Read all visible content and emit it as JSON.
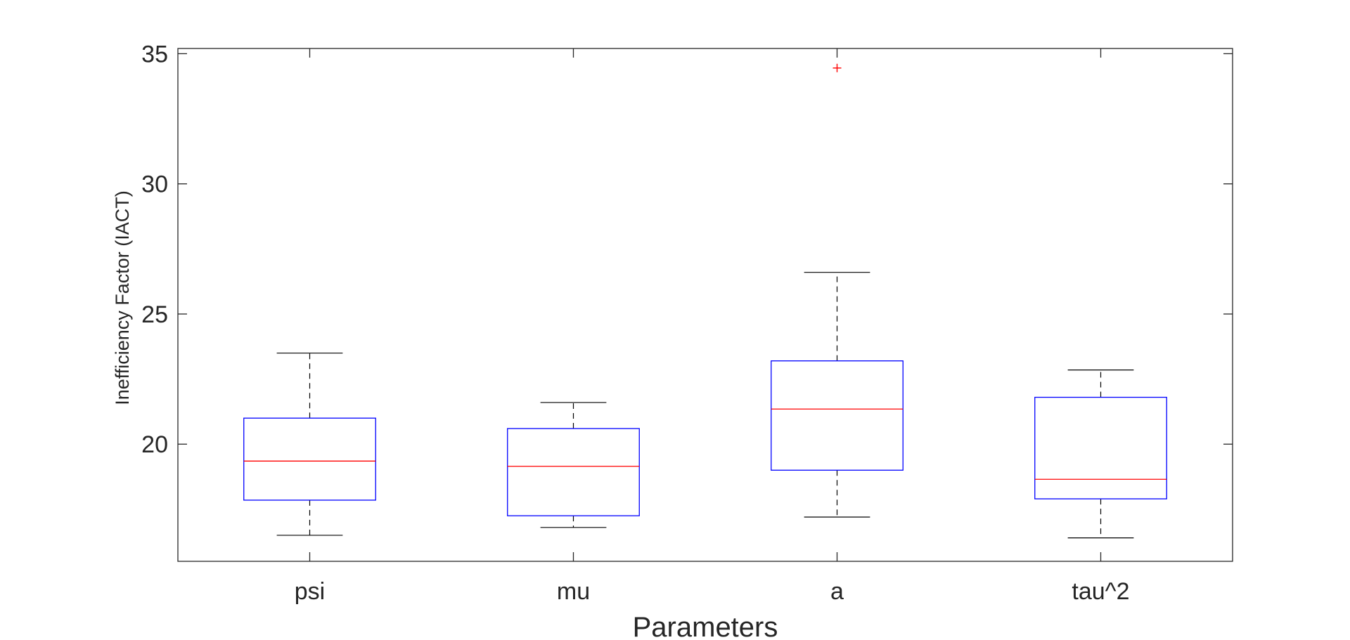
{
  "chart_data": {
    "type": "box",
    "title": "",
    "xlabel": "Parameters",
    "ylabel": "Inefficiency Factor (IACT)",
    "categories": [
      "psi",
      "mu",
      "a",
      "tau^2"
    ],
    "ylim": [
      15.5,
      35.2
    ],
    "yticks": [
      20,
      25,
      30,
      35
    ],
    "grid": false,
    "boxes": [
      {
        "category": "psi",
        "whisker_low": 16.5,
        "q1": 17.85,
        "median": 19.35,
        "q3": 21.0,
        "whisker_high": 23.5,
        "outliers": []
      },
      {
        "category": "mu",
        "whisker_low": 16.8,
        "q1": 17.25,
        "median": 19.15,
        "q3": 20.6,
        "whisker_high": 21.6,
        "outliers": []
      },
      {
        "category": "a",
        "whisker_low": 17.2,
        "q1": 19.0,
        "median": 21.35,
        "q3": 23.2,
        "whisker_high": 26.6,
        "outliers": [
          34.45
        ]
      },
      {
        "category": "tau^2",
        "whisker_low": 16.4,
        "q1": 17.9,
        "median": 18.65,
        "q3": 21.8,
        "whisker_high": 22.85,
        "outliers": []
      }
    ],
    "colors": {
      "box": "#0000ff",
      "median": "#ff0000",
      "whisker": "#000000",
      "outlier": "#ff0000",
      "axes": "#262626"
    }
  }
}
